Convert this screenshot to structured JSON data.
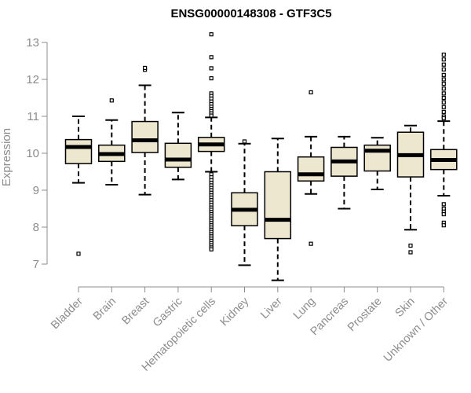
{
  "colors": {
    "box_fill": "#eee7cf",
    "stroke": "#000000",
    "axis": "#8c8c8c",
    "text_muted": "#8c8c8c"
  },
  "chart_data": {
    "type": "boxplot",
    "title": "ENSG00000148308 - GTF3C5",
    "xlabel": "",
    "ylabel": "Expression",
    "ylim": [
      6.5,
      13.2
    ],
    "yticks": [
      7,
      8,
      9,
      10,
      11,
      12,
      13
    ],
    "legend": "none",
    "categories": [
      "Bladder",
      "Brain",
      "Breast",
      "Gastric",
      "Hematopoietic cells",
      "Kidney",
      "Liver",
      "Lung",
      "Pancreas",
      "Prostate",
      "Skin",
      "Unknown / Other"
    ],
    "series": [
      {
        "name": "Bladder",
        "whisker_low": 9.2,
        "q1": 9.72,
        "median": 10.17,
        "q3": 10.37,
        "whisker_high": 11.0,
        "outliers": [
          7.28
        ]
      },
      {
        "name": "Brain",
        "whisker_low": 9.15,
        "q1": 9.78,
        "median": 9.98,
        "q3": 10.22,
        "whisker_high": 10.9,
        "outliers": [
          11.43
        ]
      },
      {
        "name": "Breast",
        "whisker_low": 8.88,
        "q1": 10.02,
        "median": 10.35,
        "q3": 10.86,
        "whisker_high": 11.84,
        "outliers": [
          12.26,
          12.31
        ]
      },
      {
        "name": "Gastric",
        "whisker_low": 9.29,
        "q1": 9.62,
        "median": 9.83,
        "q3": 10.27,
        "whisker_high": 11.1,
        "outliers": []
      },
      {
        "name": "Hematopoietic cells",
        "whisker_low": 9.5,
        "q1": 10.05,
        "median": 10.24,
        "q3": 10.43,
        "whisker_high": 10.97,
        "outliers": [
          13.22,
          12.6,
          12.3,
          12.03,
          11.62,
          11.55,
          11.48,
          11.4,
          11.33,
          11.26,
          11.2,
          11.14,
          11.08,
          11.02,
          9.43,
          9.35,
          9.27,
          9.2,
          9.13,
          9.06,
          9.0,
          8.93,
          8.86,
          8.8,
          8.73,
          8.66,
          8.6,
          8.53,
          8.47,
          8.41,
          8.35,
          8.29,
          8.23,
          8.17,
          8.11,
          8.05,
          7.99,
          7.93,
          7.87,
          7.81,
          7.75,
          7.69,
          7.63,
          7.57,
          7.51,
          7.45,
          7.4
        ]
      },
      {
        "name": "Kidney",
        "whisker_low": 6.97,
        "q1": 8.04,
        "median": 8.47,
        "q3": 8.93,
        "whisker_high": 10.26,
        "outliers": [
          10.32
        ]
      },
      {
        "name": "Liver",
        "whisker_low": 6.56,
        "q1": 7.69,
        "median": 8.2,
        "q3": 9.5,
        "whisker_high": 10.4,
        "outliers": []
      },
      {
        "name": "Lung",
        "whisker_low": 8.9,
        "q1": 9.25,
        "median": 9.43,
        "q3": 9.9,
        "whisker_high": 10.45,
        "outliers": [
          11.65,
          7.55
        ]
      },
      {
        "name": "Pancreas",
        "whisker_low": 8.5,
        "q1": 9.38,
        "median": 9.78,
        "q3": 10.16,
        "whisker_high": 10.45,
        "outliers": []
      },
      {
        "name": "Prostate",
        "whisker_low": 9.02,
        "q1": 9.52,
        "median": 10.07,
        "q3": 10.22,
        "whisker_high": 10.42,
        "outliers": []
      },
      {
        "name": "Skin",
        "whisker_low": 7.93,
        "q1": 9.36,
        "median": 9.95,
        "q3": 10.57,
        "whisker_high": 10.75,
        "outliers": [
          7.5,
          7.32
        ]
      },
      {
        "name": "Unknown / Other",
        "whisker_low": 8.85,
        "q1": 9.56,
        "median": 9.82,
        "q3": 10.1,
        "whisker_high": 10.87,
        "outliers": [
          12.67,
          12.54,
          12.4,
          12.27,
          12.12,
          12.0,
          11.88,
          11.75,
          11.62,
          11.5,
          11.38,
          11.25,
          11.12,
          11.0,
          10.95,
          8.62,
          8.5,
          8.42,
          8.35,
          8.12,
          8.05
        ]
      }
    ]
  }
}
